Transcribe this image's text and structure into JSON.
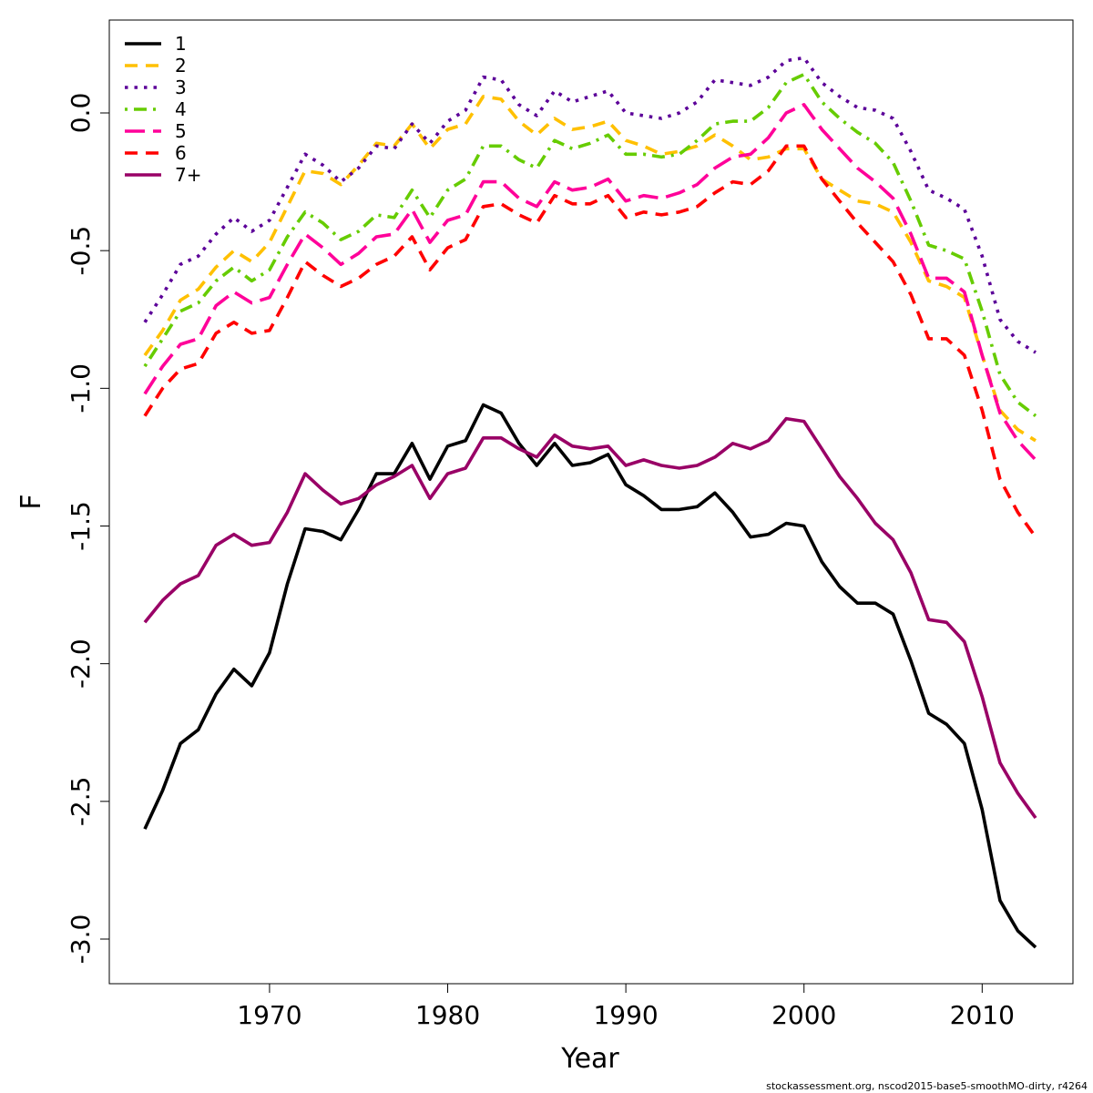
{
  "chart_data": {
    "type": "line",
    "xlabel": "Year",
    "ylabel": "F",
    "xlim": [
      1963,
      2013
    ],
    "ylim": [
      -3.0,
      0.2
    ],
    "x_ticks": [
      1970,
      1980,
      1990,
      2000,
      2010
    ],
    "y_ticks": [
      -3.0,
      -2.5,
      -2.0,
      -1.5,
      -1.0,
      -0.5,
      0.0
    ],
    "y_tick_labels": [
      "-3.0",
      "-2.5",
      "-2.0",
      "-1.5",
      "-1.0",
      "-0.5",
      "0.0"
    ],
    "grid": false,
    "legend_position": "top-left",
    "x": [
      1963,
      1964,
      1965,
      1966,
      1967,
      1968,
      1969,
      1970,
      1971,
      1972,
      1973,
      1974,
      1975,
      1976,
      1977,
      1978,
      1979,
      1980,
      1981,
      1982,
      1983,
      1984,
      1985,
      1986,
      1987,
      1988,
      1989,
      1990,
      1991,
      1992,
      1993,
      1994,
      1995,
      1996,
      1997,
      1998,
      1999,
      2000,
      2001,
      2002,
      2003,
      2004,
      2005,
      2006,
      2007,
      2008,
      2009,
      2010,
      2011,
      2012,
      2013
    ],
    "series": [
      {
        "name": "1",
        "color": "#000000",
        "dash": "solid",
        "values": [
          -2.6,
          -2.46,
          -2.29,
          -2.24,
          -2.11,
          -2.02,
          -2.08,
          -1.96,
          -1.71,
          -1.51,
          -1.52,
          -1.55,
          -1.44,
          -1.31,
          -1.31,
          -1.2,
          -1.33,
          -1.21,
          -1.19,
          -1.06,
          -1.09,
          -1.2,
          -1.28,
          -1.2,
          -1.28,
          -1.27,
          -1.24,
          -1.35,
          -1.39,
          -1.44,
          -1.44,
          -1.43,
          -1.38,
          -1.45,
          -1.54,
          -1.53,
          -1.49,
          -1.5,
          -1.63,
          -1.72,
          -1.78,
          -1.78,
          -1.82,
          -1.99,
          -2.18,
          -2.22,
          -2.29,
          -2.53,
          -2.86,
          -2.97,
          -3.03
        ]
      },
      {
        "name": "2",
        "color": "#FFC000",
        "dash": "dashed",
        "values": [
          -0.88,
          -0.79,
          -0.68,
          -0.64,
          -0.56,
          -0.5,
          -0.54,
          -0.47,
          -0.34,
          -0.21,
          -0.22,
          -0.26,
          -0.19,
          -0.11,
          -0.12,
          -0.04,
          -0.13,
          -0.06,
          -0.04,
          0.06,
          0.05,
          -0.03,
          -0.08,
          -0.02,
          -0.06,
          -0.05,
          -0.03,
          -0.1,
          -0.12,
          -0.15,
          -0.14,
          -0.12,
          -0.08,
          -0.12,
          -0.17,
          -0.16,
          -0.13,
          -0.13,
          -0.24,
          -0.28,
          -0.32,
          -0.33,
          -0.36,
          -0.47,
          -0.61,
          -0.63,
          -0.67,
          -0.88,
          -1.08,
          -1.15,
          -1.19
        ]
      },
      {
        "name": "3",
        "color": "#5C0099",
        "dash": "dotted",
        "values": [
          -0.76,
          -0.66,
          -0.55,
          -0.52,
          -0.44,
          -0.38,
          -0.43,
          -0.39,
          -0.27,
          -0.15,
          -0.19,
          -0.25,
          -0.2,
          -0.12,
          -0.13,
          -0.04,
          -0.11,
          -0.03,
          0.01,
          0.13,
          0.12,
          0.03,
          -0.01,
          0.08,
          0.04,
          0.06,
          0.08,
          0.0,
          -0.01,
          -0.02,
          0.0,
          0.04,
          0.12,
          0.11,
          0.1,
          0.13,
          0.19,
          0.2,
          0.11,
          0.06,
          0.02,
          0.01,
          -0.02,
          -0.14,
          -0.28,
          -0.31,
          -0.35,
          -0.52,
          -0.75,
          -0.83,
          -0.87
        ]
      },
      {
        "name": "4",
        "color": "#66CC00",
        "dash": "dotdash",
        "values": [
          -0.92,
          -0.82,
          -0.72,
          -0.69,
          -0.61,
          -0.56,
          -0.61,
          -0.57,
          -0.45,
          -0.36,
          -0.4,
          -0.46,
          -0.43,
          -0.37,
          -0.38,
          -0.28,
          -0.38,
          -0.28,
          -0.24,
          -0.12,
          -0.12,
          -0.17,
          -0.2,
          -0.1,
          -0.13,
          -0.11,
          -0.08,
          -0.15,
          -0.15,
          -0.16,
          -0.15,
          -0.1,
          -0.04,
          -0.03,
          -0.03,
          0.02,
          0.11,
          0.14,
          0.04,
          -0.02,
          -0.07,
          -0.11,
          -0.18,
          -0.32,
          -0.48,
          -0.5,
          -0.53,
          -0.72,
          -0.95,
          -1.05,
          -1.1
        ]
      },
      {
        "name": "5",
        "color": "#FF0099",
        "dash": "longdash",
        "values": [
          -1.02,
          -0.92,
          -0.84,
          -0.82,
          -0.7,
          -0.65,
          -0.69,
          -0.67,
          -0.55,
          -0.44,
          -0.49,
          -0.55,
          -0.51,
          -0.45,
          -0.44,
          -0.35,
          -0.47,
          -0.39,
          -0.37,
          -0.25,
          -0.25,
          -0.31,
          -0.34,
          -0.25,
          -0.28,
          -0.27,
          -0.24,
          -0.32,
          -0.3,
          -0.31,
          -0.29,
          -0.26,
          -0.2,
          -0.16,
          -0.15,
          -0.09,
          0.0,
          0.03,
          -0.06,
          -0.13,
          -0.2,
          -0.25,
          -0.31,
          -0.44,
          -0.6,
          -0.6,
          -0.65,
          -0.88,
          -1.09,
          -1.19,
          -1.26
        ]
      },
      {
        "name": "6",
        "color": "#FF0000",
        "dash": "dashed",
        "values": [
          -1.1,
          -1.0,
          -0.93,
          -0.91,
          -0.8,
          -0.76,
          -0.8,
          -0.79,
          -0.67,
          -0.54,
          -0.59,
          -0.63,
          -0.6,
          -0.55,
          -0.52,
          -0.45,
          -0.57,
          -0.49,
          -0.46,
          -0.34,
          -0.33,
          -0.37,
          -0.4,
          -0.3,
          -0.33,
          -0.33,
          -0.3,
          -0.38,
          -0.36,
          -0.37,
          -0.36,
          -0.34,
          -0.29,
          -0.25,
          -0.26,
          -0.21,
          -0.12,
          -0.12,
          -0.24,
          -0.32,
          -0.4,
          -0.47,
          -0.54,
          -0.66,
          -0.82,
          -0.82,
          -0.88,
          -1.08,
          -1.33,
          -1.45,
          -1.54
        ]
      },
      {
        "name": "7+",
        "color": "#990066",
        "dash": "solid",
        "values": [
          -1.85,
          -1.77,
          -1.71,
          -1.68,
          -1.57,
          -1.53,
          -1.57,
          -1.56,
          -1.45,
          -1.31,
          -1.37,
          -1.42,
          -1.4,
          -1.35,
          -1.32,
          -1.28,
          -1.4,
          -1.31,
          -1.29,
          -1.18,
          -1.18,
          -1.22,
          -1.25,
          -1.17,
          -1.21,
          -1.22,
          -1.21,
          -1.28,
          -1.26,
          -1.28,
          -1.29,
          -1.28,
          -1.25,
          -1.2,
          -1.22,
          -1.19,
          -1.11,
          -1.12,
          -1.22,
          -1.32,
          -1.4,
          -1.49,
          -1.55,
          -1.67,
          -1.84,
          -1.85,
          -1.92,
          -2.12,
          -2.36,
          -2.47,
          -2.56
        ]
      }
    ]
  },
  "footer": "stockassessment.org, nscod2015-base5-smoothMO-dirty, r4264"
}
